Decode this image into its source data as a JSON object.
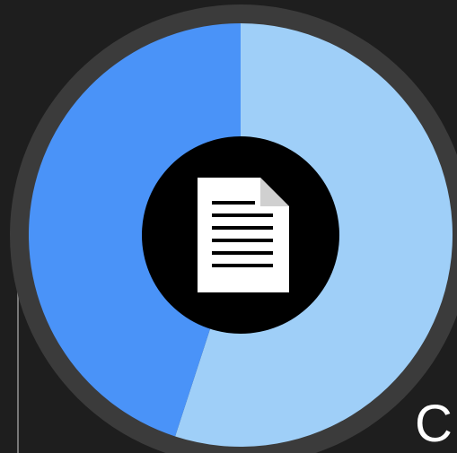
{
  "chart_data": {
    "type": "pie",
    "values": [
      55,
      45
    ],
    "colors": [
      "#9fcff8",
      "#4a93f8"
    ]
  },
  "corner_label": "C"
}
